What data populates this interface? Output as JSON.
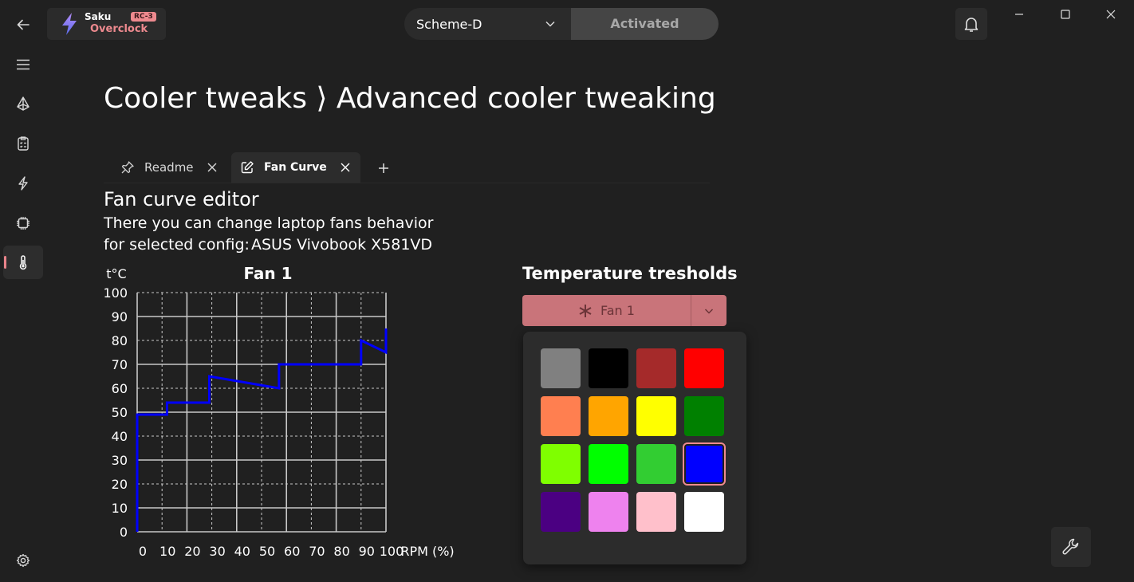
{
  "app": {
    "name": "Saku",
    "subtitle": "Overclock",
    "badge": "RC-3",
    "accent_color": "#ee8a8f",
    "bolt_color": "#8a7cf0"
  },
  "window_controls": [
    "minimize-icon",
    "maximize-icon",
    "close-icon"
  ],
  "nav": {
    "items": [
      {
        "name": "back-icon"
      },
      {
        "name": "menu-icon"
      },
      {
        "name": "prism-icon"
      },
      {
        "name": "checklist-icon"
      },
      {
        "name": "bolt-icon"
      },
      {
        "name": "chip-icon"
      },
      {
        "name": "thermometer-icon",
        "active": true
      }
    ],
    "settings": "gear-icon"
  },
  "header": {
    "scheme_value": "Scheme-D",
    "activate_label": "Activated"
  },
  "page": {
    "title": "Cooler tweaks ⟩ Advanced cooler tweaking"
  },
  "tabs": [
    {
      "label": "Readme",
      "icon": "pin-icon",
      "active": false
    },
    {
      "label": "Fan Curve",
      "icon": "edit-icon",
      "active": true
    }
  ],
  "editor": {
    "title": "Fan curve editor",
    "description": "There you can change laptop fans behavior",
    "config_label": "for selected config:",
    "config_value": "ASUS Vivobook X581VD"
  },
  "chart_data": {
    "type": "line",
    "title": "Fan 1",
    "ylabel": "t°C",
    "xlabel": "RPM (%)",
    "xlim": [
      0,
      100
    ],
    "ylim": [
      0,
      100
    ],
    "x_ticks": [
      0,
      10,
      20,
      30,
      40,
      50,
      60,
      70,
      80,
      90,
      100
    ],
    "y_ticks": [
      0,
      10,
      20,
      30,
      40,
      50,
      60,
      70,
      80,
      90,
      100
    ],
    "grid": true,
    "series": [
      {
        "color": "#0000ff",
        "x": [
          0,
          0,
          12,
          12,
          29,
          29,
          57,
          57,
          90,
          90,
          100,
          100
        ],
        "y": [
          0,
          49,
          49,
          54,
          54,
          65,
          60,
          70,
          70,
          80,
          75,
          85
        ]
      }
    ]
  },
  "thresholds": {
    "title": "Temperature tresholds",
    "fan_label": "Fan 1",
    "colors": [
      "#808080",
      "#000000",
      "#a52a2a",
      "#ff0000",
      "#ff7f50",
      "#ffa500",
      "#ffff00",
      "#008000",
      "#7fff00",
      "#00ff00",
      "#32cd32",
      "#0000ff",
      "#4b0082",
      "#ee82ee",
      "#ffc0cb",
      "#ffffff"
    ],
    "selected_color": "#0000ff"
  }
}
